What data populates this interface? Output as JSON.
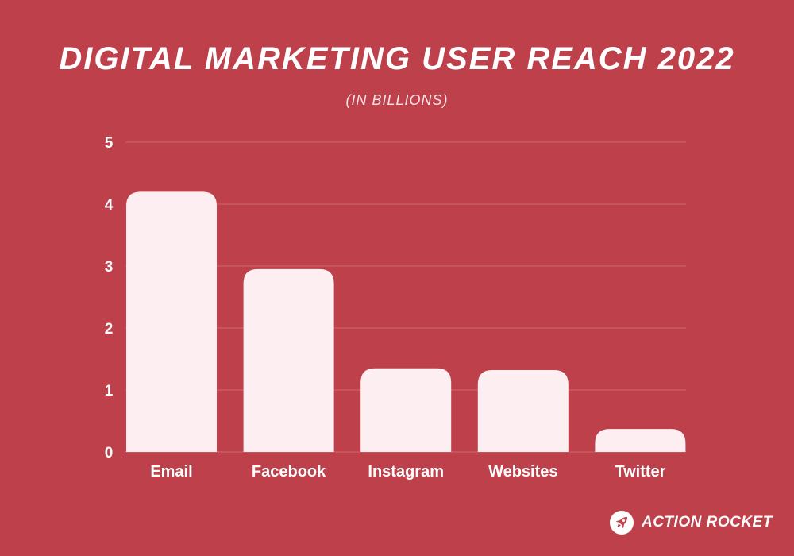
{
  "colors": {
    "background": "#be404a",
    "bar": "#fdeff1",
    "grid": "#d0666f",
    "text": "#ffffff"
  },
  "brand": {
    "name": "ACTION ROCKET",
    "icon": "rocket-icon"
  },
  "chart_data": {
    "type": "bar",
    "title": "DIGITAL MARKETING USER REACH 2022",
    "subtitle": "(IN BILLIONS)",
    "xlabel": "",
    "ylabel": "",
    "categories": [
      "Email",
      "Facebook",
      "Instagram",
      "Websites",
      "Twitter"
    ],
    "values": [
      4.2,
      2.95,
      1.35,
      1.32,
      0.37
    ],
    "ylim": [
      0,
      5
    ],
    "yticks": [
      "0",
      "1",
      "2",
      "3",
      "4",
      "5"
    ],
    "grid": true,
    "legend": "none"
  }
}
